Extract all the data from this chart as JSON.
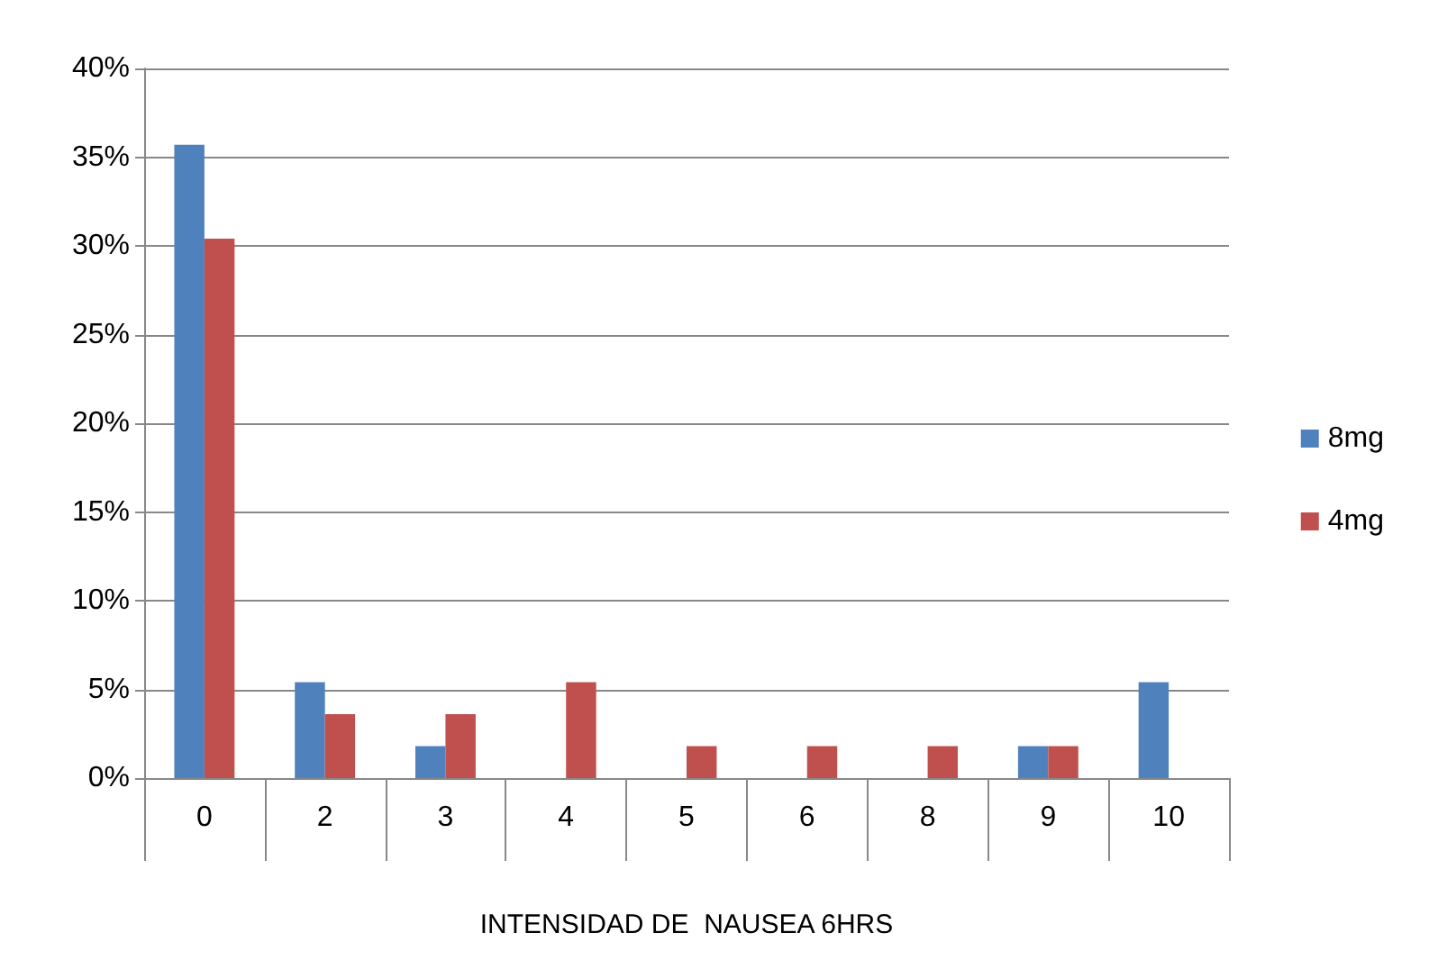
{
  "chart_data": {
    "type": "bar",
    "xlabel": "INTENSIDAD DE  NAUSEA 6HRS",
    "categories": [
      "0",
      "2",
      "3",
      "4",
      "5",
      "6",
      "8",
      "9",
      "10"
    ],
    "series": [
      {
        "name": "8mg",
        "color": "#4f81bd",
        "values": [
          35.7,
          5.4,
          1.8,
          0,
          0,
          0,
          0,
          1.8,
          5.4
        ]
      },
      {
        "name": "4mg",
        "color": "#c0504d",
        "values": [
          30.4,
          3.6,
          3.6,
          5.4,
          1.8,
          1.8,
          1.8,
          1.8,
          0
        ]
      }
    ],
    "ylim": [
      0,
      40
    ],
    "yticks": [
      {
        "value": 0,
        "label": "0%"
      },
      {
        "value": 5,
        "label": "5%"
      },
      {
        "value": 10,
        "label": "10%"
      },
      {
        "value": 15,
        "label": "15%"
      },
      {
        "value": 20,
        "label": "20%"
      },
      {
        "value": 25,
        "label": "25%"
      },
      {
        "value": 30,
        "label": "30%"
      },
      {
        "value": 35,
        "label": "35%"
      },
      {
        "value": 40,
        "label": "40%"
      }
    ],
    "grid": "y",
    "legend": "right"
  }
}
